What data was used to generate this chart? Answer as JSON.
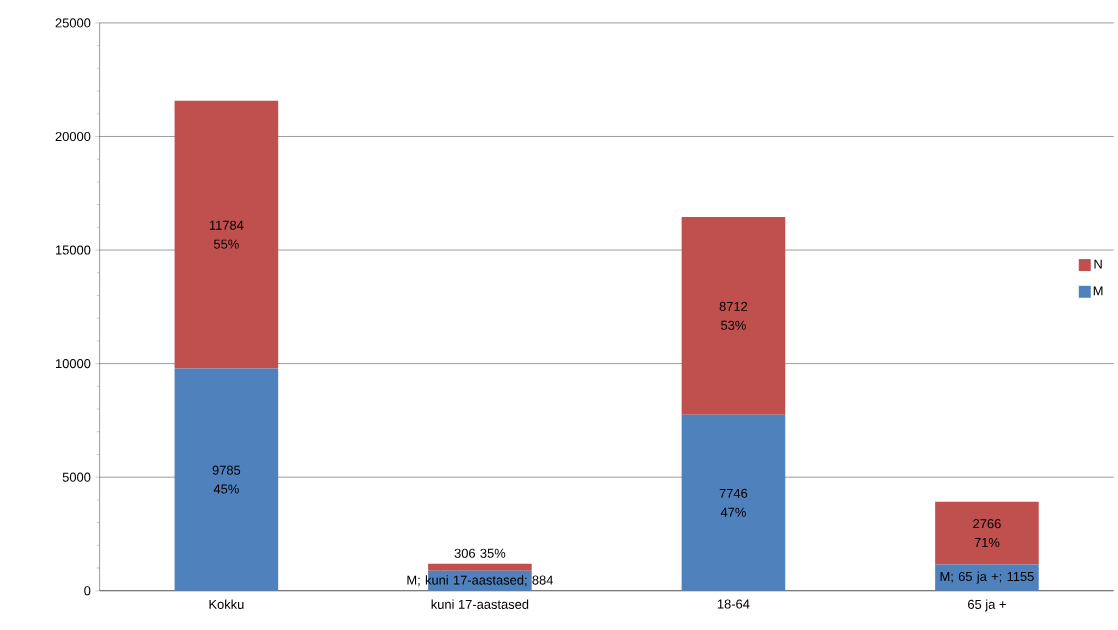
{
  "chart_data": {
    "type": "bar",
    "stacked": true,
    "categories": [
      "Kokku",
      "kuni 17-aastased",
      "18-64",
      "65 ja +"
    ],
    "series": [
      {
        "name": "M",
        "color": "#4f81bd",
        "values": [
          9785,
          884,
          7746,
          1155
        ],
        "value_labels": [
          "9785 45%",
          "M; kuni 17-aastased; 884",
          "7746 47%",
          "M; 65 ja +; 1155"
        ]
      },
      {
        "name": "N",
        "color": "#c0504d",
        "values": [
          11784,
          306,
          8712,
          2766
        ],
        "value_labels": [
          "11784 55%",
          "306 35%",
          "8712 53%",
          "2766 71%"
        ]
      }
    ],
    "ylim": [
      0,
      25000
    ],
    "yticks": [
      0,
      5000,
      10000,
      15000,
      20000,
      25000
    ],
    "grid": "y",
    "legend": "right"
  }
}
